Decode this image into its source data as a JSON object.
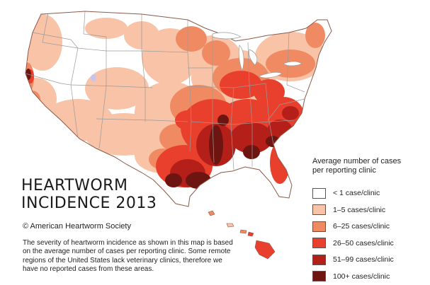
{
  "title": {
    "line1": "HEARTWORM",
    "line2": "INCIDENCE 2013"
  },
  "copyright": "© American Heartworm Society",
  "note": "The severity of heartworm incidence as shown in this map is based on the average number of cases per reporting clinic. Some remote regions of the United States lack veterinary clinics, therefore we have no reported cases from these areas.",
  "legend": {
    "title_line1": "Average number of cases",
    "title_line2": "per reporting clinic",
    "items": [
      {
        "label": "< 1 case/clinic",
        "color": "#ffffff"
      },
      {
        "label": "1–5 cases/clinic",
        "color": "#f8c3a6"
      },
      {
        "label": "6–25 cases/clinic",
        "color": "#f08a62"
      },
      {
        "label": "26–50 cases/clinic",
        "color": "#e8402c"
      },
      {
        "label": "51–99 cases/clinic",
        "color": "#b51f1a"
      },
      {
        "label": "100+ cases/clinic",
        "color": "#6e1512"
      }
    ]
  },
  "map": {
    "outline_color": "#8a5a4a",
    "border_color": "#9a9a9a"
  }
}
